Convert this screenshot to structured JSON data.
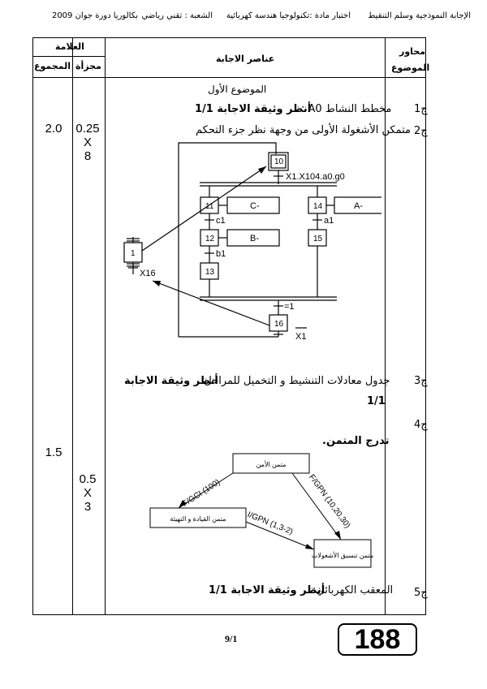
{
  "header": {
    "part1": "الإجابة النموذجية وسلم التنقيط",
    "part2": "اختبار مادة :تكنولوجيا هندسة كهربائية",
    "part3": "الشعبة : تقني رياضي",
    "part4": "بكالوريا دورة جوان 2009"
  },
  "table_head": {
    "grade": "العلامة",
    "total": "المجموع",
    "partial": "مجزأة",
    "answer_elements": "عناصر الاجابة",
    "axes_line1": "محاور",
    "axes_line2": "الموضوع"
  },
  "subject_title": "الموضوع الأول",
  "questions": [
    {
      "num": "ج1",
      "text": "مخطط النشاط A0 :",
      "ref": "أنظر وثيقة الاجابة 1/1"
    },
    {
      "num": "ج2",
      "text": "متمكن الأشغولة الأولى من وجهة نظر جزء التحكم"
    },
    {
      "num": "ج3",
      "text": "جدول معادلات التنشيط و التخميل للمراحل:",
      "ref": "أنظر وثيقة الاجابة",
      "ref2": "1/1"
    },
    {
      "num": "ج4",
      "text": "تدرج المتمن."
    },
    {
      "num": "ج5",
      "text": "المعقب الكهربائي:",
      "ref": "أنظر وثيقة الاجابة 1/1"
    }
  ],
  "scores": {
    "q2_total": "2.0",
    "q2_partial": [
      "0.25",
      "X",
      "8"
    ],
    "q4_total": "1.5",
    "q4_partial": [
      "0.5",
      "X",
      "3"
    ]
  },
  "grafcet": {
    "steps": [
      "10",
      "11",
      "12",
      "13",
      "14",
      "15",
      "16",
      "1"
    ],
    "actions": [
      "C-",
      "B-",
      "A-"
    ],
    "transitions": [
      "X1.X104.a0.g0",
      "c1",
      "b1",
      "a1",
      "=1",
      "X16",
      "X1"
    ]
  },
  "sync_diagram": {
    "nodes": [
      "متمن الأمن",
      "متمن القيادة و التهيئة",
      "متمن تنسيق الأشغولات"
    ],
    "edges": [
      "F/GCI (100)",
      "F/GPN (10,20,30)",
      "I/GPN (1,3-2)"
    ]
  },
  "footer": {
    "page": "9/1",
    "stamp": "188"
  }
}
